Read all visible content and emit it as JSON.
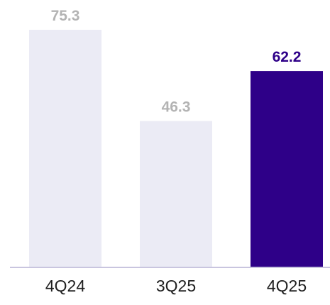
{
  "chart_data": {
    "type": "bar",
    "title": "",
    "xlabel": "",
    "ylabel": "",
    "categories": [
      "4Q24",
      "3Q25",
      "4Q25"
    ],
    "values": [
      75.3,
      46.3,
      62.2
    ],
    "value_labels": [
      "75.3",
      "46.3",
      "62.2"
    ],
    "ylim": [
      0,
      75.3
    ],
    "grid": false,
    "legend": "none",
    "highlight_index": 2
  },
  "colors": {
    "bar_default": "#ebebf5",
    "bar_highlight": "#2e0088",
    "label_default": "#b3b3b3",
    "label_highlight": "#2e0088",
    "axis_line": "#c9c5df",
    "category_text": "#1f1f1f"
  }
}
